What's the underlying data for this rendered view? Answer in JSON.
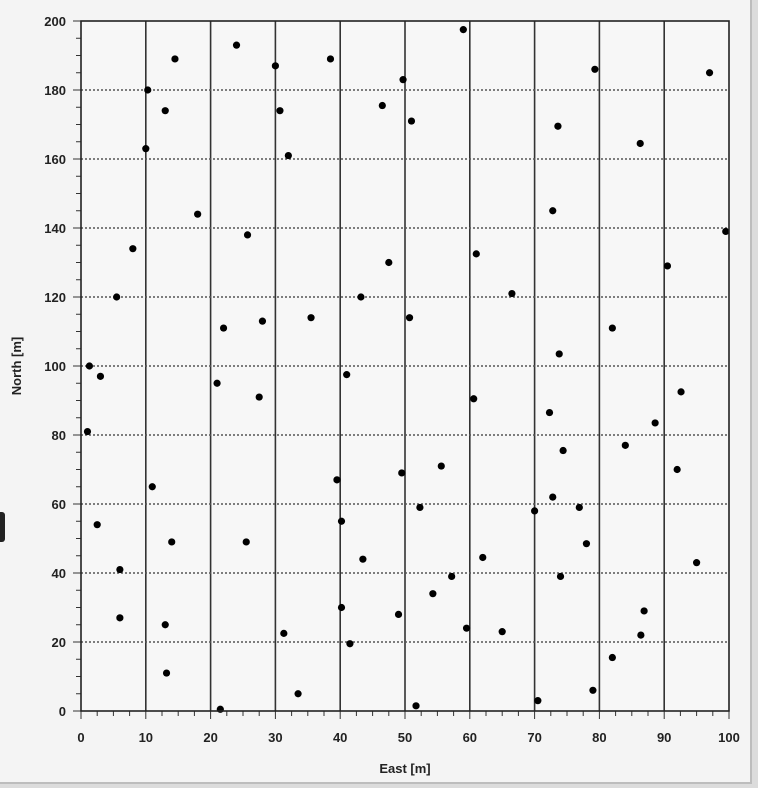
{
  "chart_data": {
    "type": "scatter",
    "xlabel": "East [m]",
    "ylabel": "North [m]",
    "xlim": [
      0,
      100
    ],
    "ylim": [
      0,
      200
    ],
    "x_ticks": [
      0,
      10,
      20,
      30,
      40,
      50,
      60,
      70,
      80,
      90,
      100
    ],
    "y_ticks": [
      0,
      20,
      40,
      60,
      80,
      100,
      120,
      140,
      160,
      180,
      200
    ],
    "grid": true,
    "marker_color": "#000000",
    "points": [
      {
        "x": 1,
        "y": 81
      },
      {
        "x": 1.3,
        "y": 100
      },
      {
        "x": 2.5,
        "y": 54
      },
      {
        "x": 3,
        "y": 97
      },
      {
        "x": 5.5,
        "y": 120
      },
      {
        "x": 6,
        "y": 41
      },
      {
        "x": 6,
        "y": 27
      },
      {
        "x": 8,
        "y": 134
      },
      {
        "x": 10,
        "y": 163
      },
      {
        "x": 10.3,
        "y": 180
      },
      {
        "x": 11,
        "y": 65
      },
      {
        "x": 13,
        "y": 174
      },
      {
        "x": 13,
        "y": 25
      },
      {
        "x": 13.2,
        "y": 11
      },
      {
        "x": 14,
        "y": 49
      },
      {
        "x": 14.5,
        "y": 189
      },
      {
        "x": 18,
        "y": 144
      },
      {
        "x": 21,
        "y": 95
      },
      {
        "x": 21.5,
        "y": 0.5
      },
      {
        "x": 22,
        "y": 111
      },
      {
        "x": 24,
        "y": 193
      },
      {
        "x": 25.5,
        "y": 49
      },
      {
        "x": 25.7,
        "y": 138
      },
      {
        "x": 27.5,
        "y": 91
      },
      {
        "x": 28,
        "y": 113
      },
      {
        "x": 30,
        "y": 187
      },
      {
        "x": 30.7,
        "y": 174
      },
      {
        "x": 31.3,
        "y": 22.5
      },
      {
        "x": 32,
        "y": 161
      },
      {
        "x": 33.5,
        "y": 5
      },
      {
        "x": 35.5,
        "y": 114
      },
      {
        "x": 38.5,
        "y": 189
      },
      {
        "x": 39.5,
        "y": 67
      },
      {
        "x": 40.2,
        "y": 55
      },
      {
        "x": 40.2,
        "y": 30
      },
      {
        "x": 41,
        "y": 97.5
      },
      {
        "x": 41.5,
        "y": 19.5
      },
      {
        "x": 43.2,
        "y": 120
      },
      {
        "x": 43.5,
        "y": 44
      },
      {
        "x": 46.5,
        "y": 175.5
      },
      {
        "x": 47.5,
        "y": 130
      },
      {
        "x": 49,
        "y": 28
      },
      {
        "x": 49.5,
        "y": 69
      },
      {
        "x": 49.7,
        "y": 183
      },
      {
        "x": 50.7,
        "y": 114
      },
      {
        "x": 51,
        "y": 171
      },
      {
        "x": 51.7,
        "y": 1.5
      },
      {
        "x": 52.3,
        "y": 59
      },
      {
        "x": 54.3,
        "y": 34
      },
      {
        "x": 55.6,
        "y": 71
      },
      {
        "x": 57.2,
        "y": 39
      },
      {
        "x": 59,
        "y": 197.5
      },
      {
        "x": 59.5,
        "y": 24
      },
      {
        "x": 60.6,
        "y": 90.5
      },
      {
        "x": 61,
        "y": 132.5
      },
      {
        "x": 62,
        "y": 44.5
      },
      {
        "x": 65,
        "y": 23
      },
      {
        "x": 66.5,
        "y": 121
      },
      {
        "x": 70,
        "y": 58
      },
      {
        "x": 70.5,
        "y": 3
      },
      {
        "x": 72.3,
        "y": 86.5
      },
      {
        "x": 72.8,
        "y": 145
      },
      {
        "x": 72.8,
        "y": 62
      },
      {
        "x": 73.6,
        "y": 169.5
      },
      {
        "x": 73.8,
        "y": 103.5
      },
      {
        "x": 74,
        "y": 39
      },
      {
        "x": 74.4,
        "y": 75.5
      },
      {
        "x": 76.9,
        "y": 59
      },
      {
        "x": 78,
        "y": 48.5
      },
      {
        "x": 79,
        "y": 6
      },
      {
        "x": 79.3,
        "y": 186
      },
      {
        "x": 82,
        "y": 111
      },
      {
        "x": 82,
        "y": 15.5
      },
      {
        "x": 84,
        "y": 77
      },
      {
        "x": 86.3,
        "y": 164.5
      },
      {
        "x": 86.4,
        "y": 22
      },
      {
        "x": 86.9,
        "y": 29
      },
      {
        "x": 88.6,
        "y": 83.5
      },
      {
        "x": 90.5,
        "y": 129
      },
      {
        "x": 92,
        "y": 70
      },
      {
        "x": 92.6,
        "y": 92.5
      },
      {
        "x": 95,
        "y": 43
      },
      {
        "x": 97,
        "y": 185
      },
      {
        "x": 99.5,
        "y": 139
      }
    ]
  }
}
